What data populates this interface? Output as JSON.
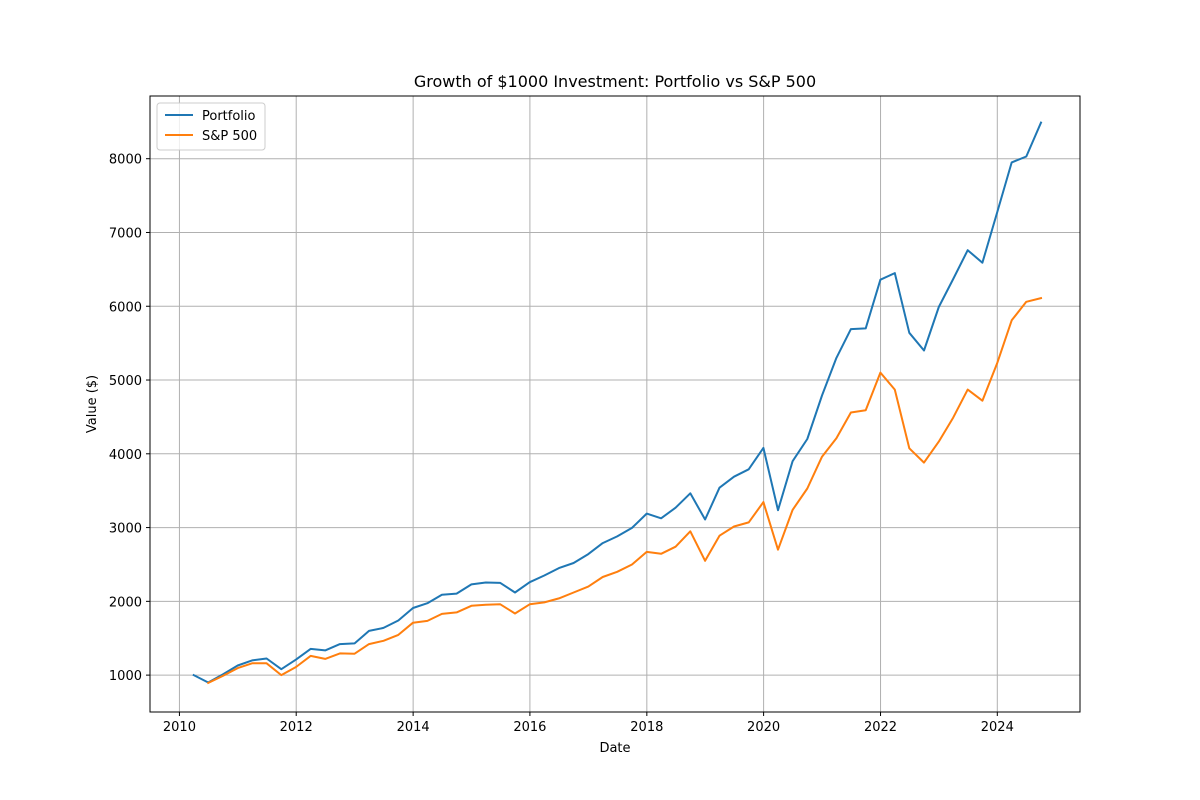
{
  "chart_data": {
    "type": "line",
    "title": "Growth of $1000 Investment: Portfolio vs S&P 500",
    "xlabel": "Date",
    "ylabel": "Value ($)",
    "x_ticks": [
      "2010",
      "2012",
      "2014",
      "2016",
      "2018",
      "2020",
      "2022",
      "2024"
    ],
    "y_ticks": [
      1000,
      2000,
      3000,
      4000,
      5000,
      6000,
      7000,
      8000
    ],
    "xlim": [
      "2009-07-01",
      "2025-06-01"
    ],
    "ylim": [
      500,
      8850
    ],
    "grid": true,
    "legend_position": "upper left",
    "x": [
      "2010-03-31",
      "2010-06-30",
      "2010-09-30",
      "2010-12-31",
      "2011-03-31",
      "2011-06-30",
      "2011-09-30",
      "2011-12-31",
      "2012-03-31",
      "2012-06-30",
      "2012-09-30",
      "2012-12-31",
      "2013-03-31",
      "2013-06-30",
      "2013-09-30",
      "2013-12-31",
      "2014-03-31",
      "2014-06-30",
      "2014-09-30",
      "2014-12-31",
      "2015-03-31",
      "2015-06-30",
      "2015-09-30",
      "2015-12-31",
      "2016-03-31",
      "2016-06-30",
      "2016-09-30",
      "2016-12-31",
      "2017-03-31",
      "2017-06-30",
      "2017-09-30",
      "2017-12-31",
      "2018-03-31",
      "2018-06-30",
      "2018-09-30",
      "2018-12-31",
      "2019-03-31",
      "2019-06-30",
      "2019-09-30",
      "2019-12-31",
      "2020-03-31",
      "2020-06-30",
      "2020-09-30",
      "2020-12-31",
      "2021-03-31",
      "2021-06-30",
      "2021-09-30",
      "2021-12-31",
      "2022-03-31",
      "2022-06-30",
      "2022-09-30",
      "2022-12-31",
      "2023-03-31",
      "2023-06-30",
      "2023-09-30",
      "2023-12-31",
      "2024-03-31",
      "2024-06-30",
      "2024-09-30"
    ],
    "series": [
      {
        "name": "Portfolio",
        "color": "#1f77b4",
        "values": [
          1000,
          900,
          1010,
          1130,
          1200,
          1225,
          1080,
          1210,
          1355,
          1335,
          1420,
          1430,
          1600,
          1640,
          1740,
          1910,
          1975,
          2090,
          2105,
          2230,
          2255,
          2250,
          2120,
          2260,
          2350,
          2450,
          2520,
          2640,
          2790,
          2880,
          2995,
          3190,
          3125,
          3270,
          3465,
          3110,
          3540,
          3690,
          3790,
          4080,
          3235,
          3900,
          4200,
          4790,
          5300,
          5690,
          5700,
          6360,
          6450,
          5640,
          5400,
          5990,
          6370,
          6760,
          6590,
          7270,
          7950,
          8030,
          8490
        ]
      },
      {
        "name": "S&P 500",
        "color": "#ff7f0e",
        "values": [
          null,
          895,
          990,
          1095,
          1160,
          1160,
          1000,
          1110,
          1260,
          1220,
          1295,
          1290,
          1420,
          1465,
          1545,
          1710,
          1735,
          1830,
          1850,
          1940,
          1955,
          1960,
          1835,
          1960,
          1985,
          2040,
          2120,
          2200,
          2330,
          2400,
          2500,
          2670,
          2645,
          2740,
          2950,
          2550,
          2890,
          3015,
          3070,
          3345,
          2700,
          3240,
          3530,
          3960,
          4210,
          4560,
          4590,
          5100,
          4870,
          4075,
          3880,
          4165,
          4490,
          4870,
          4720,
          5225,
          5810,
          6060,
          6110
        ]
      }
    ]
  }
}
